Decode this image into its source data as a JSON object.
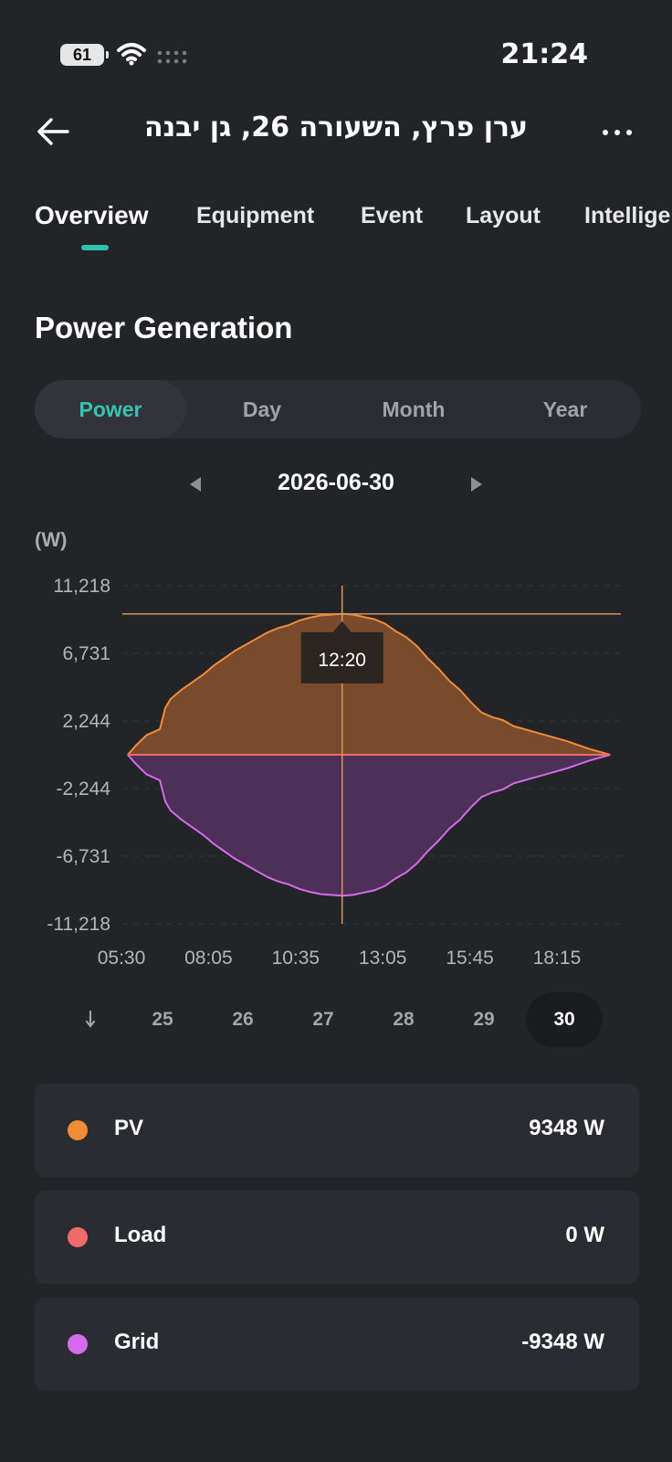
{
  "status_bar": {
    "battery": "61",
    "time": "21:24"
  },
  "header": {
    "title": "ערן פרץ, השעורה 26, גן יבנה"
  },
  "tabs": [
    {
      "label": "Overview",
      "active": true
    },
    {
      "label": "Equipment"
    },
    {
      "label": "Event"
    },
    {
      "label": "Layout"
    },
    {
      "label": "Intellige"
    }
  ],
  "section_title": "Power Generation",
  "segmented": [
    {
      "label": "Power",
      "active": true
    },
    {
      "label": "Day"
    },
    {
      "label": "Month"
    },
    {
      "label": "Year"
    }
  ],
  "date": "2026-06-30",
  "chart_data": {
    "type": "area",
    "ylabel": "(W)",
    "y_ticks": [
      "11,218",
      "6,731",
      "2,244",
      "-2,244",
      "-6,731",
      "-11,218"
    ],
    "ylim": [
      -11218,
      11218
    ],
    "x_ticks": [
      "05:30",
      "08:05",
      "10:35",
      "13:05",
      "15:45",
      "18:15"
    ],
    "xlim_minutes": [
      330,
      1260
    ],
    "tooltip_time": "12:20",
    "crosshair_minute": 740,
    "crosshair_value": 9348,
    "series": [
      {
        "name": "PV",
        "color": "#f28c38",
        "fill": "#7a4a2c",
        "x_minutes": [
          340,
          355,
          375,
          400,
          410,
          420,
          440,
          460,
          480,
          500,
          520,
          540,
          560,
          580,
          600,
          620,
          640,
          660,
          680,
          700,
          720,
          740,
          760,
          780,
          800,
          820,
          840,
          860,
          880,
          900,
          920,
          940,
          960,
          980,
          1000,
          1020,
          1040,
          1060,
          1080,
          1100,
          1120,
          1140,
          1160,
          1180,
          1200,
          1220,
          1240
        ],
        "values": [
          0,
          600,
          1300,
          1700,
          3100,
          3700,
          4300,
          4800,
          5300,
          5900,
          6400,
          6900,
          7300,
          7700,
          8100,
          8400,
          8600,
          8900,
          9100,
          9250,
          9300,
          9348,
          9300,
          9150,
          9000,
          8700,
          8200,
          7800,
          7200,
          6400,
          5700,
          4900,
          4300,
          3500,
          2800,
          2500,
          2300,
          1900,
          1700,
          1500,
          1300,
          1100,
          900,
          650,
          400,
          200,
          0
        ]
      },
      {
        "name": "Load",
        "color": "#f06a6a",
        "x_minutes": [
          340,
          1240
        ],
        "values": [
          0,
          0
        ]
      },
      {
        "name": "Grid",
        "color": "#d46be8",
        "fill": "#4d3058",
        "x_minutes": [
          340,
          355,
          375,
          400,
          410,
          420,
          440,
          460,
          480,
          500,
          520,
          540,
          560,
          580,
          600,
          620,
          640,
          660,
          680,
          700,
          720,
          740,
          760,
          780,
          800,
          820,
          840,
          860,
          880,
          900,
          920,
          940,
          960,
          980,
          1000,
          1020,
          1040,
          1060,
          1080,
          1100,
          1120,
          1140,
          1160,
          1180,
          1200,
          1220,
          1240
        ],
        "values": [
          0,
          -600,
          -1300,
          -1700,
          -3100,
          -3700,
          -4300,
          -4800,
          -5300,
          -5900,
          -6400,
          -6900,
          -7300,
          -7700,
          -8100,
          -8400,
          -8600,
          -8900,
          -9100,
          -9250,
          -9300,
          -9348,
          -9300,
          -9150,
          -9000,
          -8700,
          -8200,
          -7800,
          -7200,
          -6400,
          -5700,
          -4900,
          -4300,
          -3500,
          -2800,
          -2500,
          -2300,
          -1900,
          -1700,
          -1500,
          -1300,
          -1100,
          -900,
          -650,
          -400,
          -200,
          0
        ]
      }
    ]
  },
  "days": [
    {
      "label": "25"
    },
    {
      "label": "26"
    },
    {
      "label": "27"
    },
    {
      "label": "28"
    },
    {
      "label": "29"
    },
    {
      "label": "30",
      "active": true
    }
  ],
  "legend": [
    {
      "name": "PV",
      "value": "9348 W",
      "color": "#f28c38"
    },
    {
      "name": "Load",
      "value": "0 W",
      "color": "#f06a6a"
    },
    {
      "name": "Grid",
      "value": "-9348 W",
      "color": "#d46be8"
    }
  ]
}
